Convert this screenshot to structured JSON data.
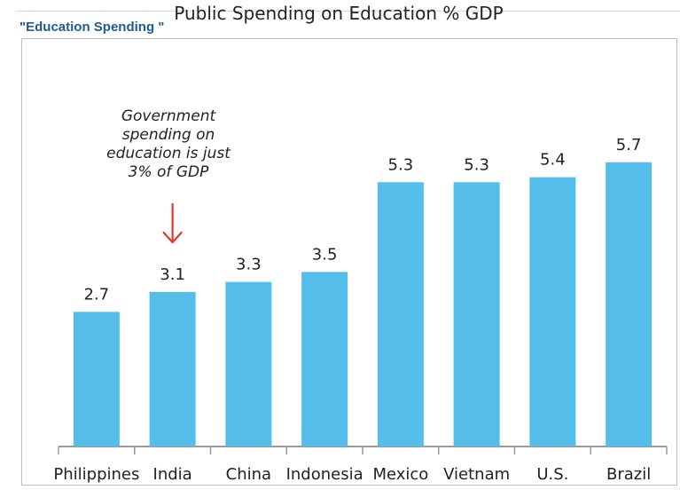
{
  "page": {
    "caption": "\"Education Spending \""
  },
  "chart_data": {
    "type": "bar",
    "title": "Public Spending on Education % GDP",
    "categories": [
      "Philippines",
      "India",
      "China",
      "Indonesia",
      "Mexico",
      "Vietnam",
      "U.S.",
      "Brazil"
    ],
    "values": [
      2.7,
      3.1,
      3.3,
      3.5,
      5.3,
      5.3,
      5.4,
      5.7
    ],
    "value_labels": [
      "2.7",
      "3.1",
      "3.3",
      "3.5",
      "5.3",
      "5.3",
      "5.4",
      "5.7"
    ],
    "ylim": [
      0,
      6.8
    ],
    "grid": false,
    "bar_color": "#55bde9",
    "annotation": {
      "lines": [
        "Government",
        "spending on",
        "education is just",
        "3% of GDP"
      ],
      "target_category": "India",
      "arrow_color": "#e0392b"
    }
  }
}
